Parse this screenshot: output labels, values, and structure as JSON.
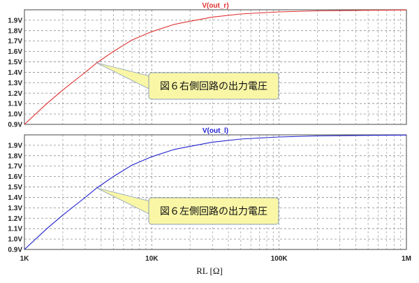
{
  "chart_data": {
    "type": "line",
    "xlabel": "RL [Ω]",
    "x_scale": "log",
    "xlim": [
      1000,
      1000000
    ],
    "x_ticks": [
      {
        "value": 1000,
        "label": "1K"
      },
      {
        "value": 10000,
        "label": "10K"
      },
      {
        "value": 100000,
        "label": "100K"
      },
      {
        "value": 1000000,
        "label": "1M"
      }
    ],
    "grid": true,
    "panels": [
      {
        "title": "V(out_r)",
        "color": "#e03030",
        "ylim": [
          0.9,
          2.0
        ],
        "y_ticks": [
          {
            "value": 0.9,
            "label": "0.9V"
          },
          {
            "value": 1.0,
            "label": "1.0V"
          },
          {
            "value": 1.1,
            "label": "1.1V"
          },
          {
            "value": 1.2,
            "label": "1.2V"
          },
          {
            "value": 1.3,
            "label": "1.3V"
          },
          {
            "value": 1.4,
            "label": "1.4V"
          },
          {
            "value": 1.5,
            "label": "1.5V"
          },
          {
            "value": 1.6,
            "label": "1.6V"
          },
          {
            "value": 1.7,
            "label": "1.7V"
          },
          {
            "value": 1.8,
            "label": "1.8V"
          },
          {
            "value": 1.9,
            "label": "1.9V"
          }
        ],
        "series": [
          {
            "name": "V(out_r)",
            "x": [
              1000,
              1500,
              2000,
              3000,
              3700,
              5000,
              7000,
              10000,
              15000,
              20000,
              30000,
              50000,
              70000,
              100000,
              200000,
              500000,
              1000000
            ],
            "y": [
              0.9,
              1.1,
              1.23,
              1.4,
              1.49,
              1.6,
              1.71,
              1.79,
              1.86,
              1.89,
              1.93,
              1.96,
              1.97,
              1.98,
              1.99,
              1.995,
              1.998
            ]
          }
        ],
        "annotation": {
          "text": "図６右側回路の出力電圧",
          "point_x": 3700,
          "point_y": 1.49
        }
      },
      {
        "title": "V(out_l)",
        "color": "#2020d0",
        "ylim": [
          0.9,
          2.0
        ],
        "y_ticks": [
          {
            "value": 0.9,
            "label": "0.9V"
          },
          {
            "value": 1.0,
            "label": "1.0V"
          },
          {
            "value": 1.1,
            "label": "1.1V"
          },
          {
            "value": 1.2,
            "label": "1.2V"
          },
          {
            "value": 1.3,
            "label": "1.3V"
          },
          {
            "value": 1.4,
            "label": "1.4V"
          },
          {
            "value": 1.5,
            "label": "1.5V"
          },
          {
            "value": 1.6,
            "label": "1.6V"
          },
          {
            "value": 1.7,
            "label": "1.7V"
          },
          {
            "value": 1.8,
            "label": "1.8V"
          },
          {
            "value": 1.9,
            "label": "1.9V"
          }
        ],
        "series": [
          {
            "name": "V(out_l)",
            "x": [
              1000,
              1500,
              2000,
              3000,
              3700,
              5000,
              7000,
              10000,
              15000,
              20000,
              30000,
              50000,
              70000,
              100000,
              200000,
              500000,
              1000000
            ],
            "y": [
              0.9,
              1.1,
              1.23,
              1.4,
              1.49,
              1.6,
              1.71,
              1.79,
              1.86,
              1.89,
              1.93,
              1.96,
              1.97,
              1.98,
              1.99,
              1.995,
              1.998
            ]
          }
        ],
        "annotation": {
          "text": "図６左側回路の出力電圧",
          "point_x": 3700,
          "point_y": 1.49
        }
      }
    ]
  }
}
